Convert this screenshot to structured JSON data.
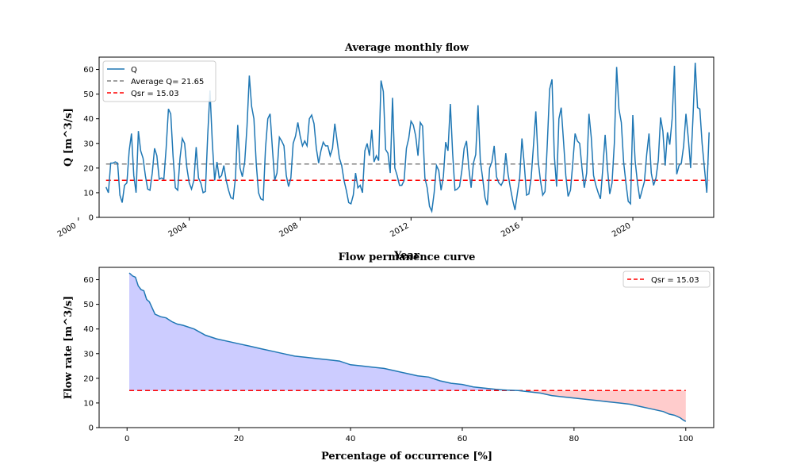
{
  "colors": {
    "flow": "#1f77b4",
    "average": "#808080",
    "qsr": "#ff0000",
    "fill_above": "#ccccff",
    "fill_below": "#ffcccc"
  },
  "chart_data": [
    {
      "type": "line",
      "title": "Average monthly flow",
      "xlabel": "Year",
      "ylabel": "Q [m^3/s]",
      "x_tick_labels": [
        "2000",
        "2004",
        "2008",
        "2012",
        "2016",
        "2020"
      ],
      "y_tick_labels": [
        "0",
        "10",
        "20",
        "30",
        "40",
        "50",
        "60"
      ],
      "xlim": [
        "2000-10",
        "2022-12"
      ],
      "ylim": [
        0,
        65
      ],
      "legend_position": "top-left",
      "grid": false,
      "series": [
        {
          "name": "Q",
          "x_start": "2001-01",
          "interval": "month",
          "values": [
            12.3,
            10.0,
            22.0,
            22.0,
            22.5,
            22.0,
            9.0,
            6.0,
            13.0,
            14.0,
            27.0,
            34.0,
            17.0,
            10.0,
            35.0,
            27.0,
            24.0,
            17.0,
            11.5,
            11.0,
            18.0,
            28.0,
            25.0,
            15.5,
            16.0,
            15.5,
            28.0,
            44.0,
            42.0,
            25.0,
            12.0,
            11.0,
            24.0,
            32.0,
            30.0,
            20.0,
            14.0,
            11.5,
            15.0,
            28.5,
            16.0,
            14.0,
            10.0,
            10.5,
            33.0,
            51.5,
            30.0,
            15.0,
            22.5,
            16.0,
            17.0,
            21.0,
            15.0,
            11.0,
            8.0,
            7.5,
            16.0,
            37.5,
            20.0,
            16.5,
            22.5,
            37.0,
            57.5,
            45.0,
            40.0,
            22.0,
            10.0,
            7.5,
            7.0,
            28.0,
            40.0,
            42.0,
            28.0,
            15.0,
            18.0,
            32.5,
            31.0,
            29.0,
            17.0,
            12.5,
            16.0,
            30.0,
            33.0,
            38.5,
            33.0,
            29.0,
            31.0,
            29.0,
            40.0,
            41.5,
            38.0,
            28.0,
            22.0,
            27.0,
            30.5,
            29.0,
            29.0,
            25.0,
            28.0,
            38.0,
            31.0,
            24.0,
            21.0,
            15.0,
            11.0,
            6.0,
            5.5,
            9.0,
            18.0,
            12.0,
            13.0,
            10.0,
            27.0,
            30.0,
            25.0,
            35.5,
            22.5,
            25.0,
            23.0,
            55.5,
            51.0,
            27.5,
            26.0,
            18.0,
            48.5,
            20.0,
            17.0,
            13.0,
            13.0,
            15.0,
            28.0,
            32.0,
            39.0,
            37.5,
            33.0,
            25.0,
            38.5,
            37.0,
            16.0,
            12.0,
            4.5,
            2.5,
            10.0,
            21.0,
            19.0,
            11.0,
            16.5,
            30.5,
            27.0,
            46.0,
            26.0,
            11.0,
            11.5,
            12.5,
            19.0,
            28.0,
            31.0,
            20.0,
            12.0,
            22.0,
            25.5,
            45.5,
            23.0,
            16.0,
            8.0,
            5.0,
            20.0,
            22.5,
            29.0,
            16.5,
            14.0,
            13.0,
            15.0,
            26.0,
            17.5,
            12.0,
            7.0,
            3.0,
            9.5,
            16.0,
            32.0,
            21.5,
            9.0,
            9.5,
            16.0,
            29.0,
            43.0,
            23.0,
            15.0,
            9.0,
            10.5,
            30.0,
            52.0,
            56.0,
            25.0,
            12.5,
            40.0,
            44.5,
            31.0,
            17.0,
            8.5,
            11.0,
            22.0,
            34.0,
            31.0,
            30.0,
            20.0,
            12.0,
            18.0,
            42.0,
            32.5,
            17.0,
            13.0,
            10.0,
            7.5,
            20.0,
            33.5,
            20.0,
            9.5,
            14.0,
            30.0,
            61.0,
            44.0,
            38.5,
            22.5,
            14.0,
            6.5,
            5.5,
            41.5,
            23.0,
            14.0,
            7.5,
            11.0,
            14.5,
            25.5,
            34.0,
            18.0,
            13.0,
            16.0,
            23.0,
            40.5,
            35.0,
            21.0,
            34.5,
            29.5,
            40.0,
            61.5,
            17.5,
            21.0,
            22.0,
            29.0,
            42.0,
            32.0,
            20.0,
            40.0,
            62.7,
            44.5,
            44.0,
            30.0,
            20.0,
            10.0,
            34.5
          ]
        },
        {
          "name": "Average Q= 21.65",
          "constant": 21.65,
          "style": "dashed"
        },
        {
          "name": "Qsr = 15.03",
          "constant": 15.03,
          "style": "dashed"
        }
      ]
    },
    {
      "type": "area",
      "title": "Flow permanence curve",
      "xlabel": "Percentage of occurrence [%]",
      "ylabel": "Flow rate [m^3/s]",
      "x_tick_labels": [
        "0",
        "20",
        "40",
        "60",
        "80",
        "100"
      ],
      "y_tick_labels": [
        "0",
        "10",
        "20",
        "30",
        "40",
        "50",
        "60"
      ],
      "xlim": [
        -5,
        105
      ],
      "ylim": [
        0,
        65
      ],
      "legend_position": "top-right",
      "grid": false,
      "series": [
        {
          "name": "",
          "x": [
            0.4,
            1.0,
            1.5,
            2.0,
            2.5,
            3.0,
            3.5,
            4.0,
            5.0,
            6.0,
            7.0,
            8.0,
            9.0,
            10.0,
            12.0,
            14.0,
            16.0,
            18.0,
            20.0,
            22.0,
            24.0,
            26.0,
            28.0,
            30.0,
            32.0,
            34.0,
            36.0,
            38.0,
            40.0,
            42.0,
            44.0,
            46.0,
            48.0,
            50.0,
            52.0,
            54.0,
            56.0,
            58.0,
            60.0,
            62.0,
            64.0,
            66.0,
            68.0,
            70.0,
            72.0,
            74.0,
            76.0,
            78.0,
            80.0,
            82.0,
            84.0,
            86.0,
            88.0,
            90.0,
            92.0,
            94.0,
            96.0,
            97.0,
            98.0,
            99.0,
            99.6,
            100.0
          ],
          "values": [
            62.7,
            61.5,
            61.0,
            57.5,
            56.0,
            55.5,
            52.0,
            51.0,
            46.0,
            45.0,
            44.5,
            43.0,
            42.0,
            41.5,
            40.0,
            37.5,
            36.0,
            35.0,
            34.0,
            33.0,
            32.0,
            31.0,
            30.0,
            29.0,
            28.5,
            28.0,
            27.5,
            27.0,
            25.5,
            25.0,
            24.5,
            24.0,
            23.0,
            22.0,
            21.0,
            20.5,
            19.0,
            18.0,
            17.5,
            16.5,
            16.0,
            15.5,
            15.2,
            15.03,
            14.5,
            14.0,
            13.0,
            12.5,
            12.0,
            11.5,
            11.0,
            10.5,
            10.0,
            9.5,
            8.5,
            7.5,
            6.5,
            5.5,
            5.0,
            4.0,
            3.0,
            2.5
          ]
        },
        {
          "name": "Qsr = 15.03",
          "constant": 15.03,
          "style": "dashed"
        }
      ]
    }
  ]
}
